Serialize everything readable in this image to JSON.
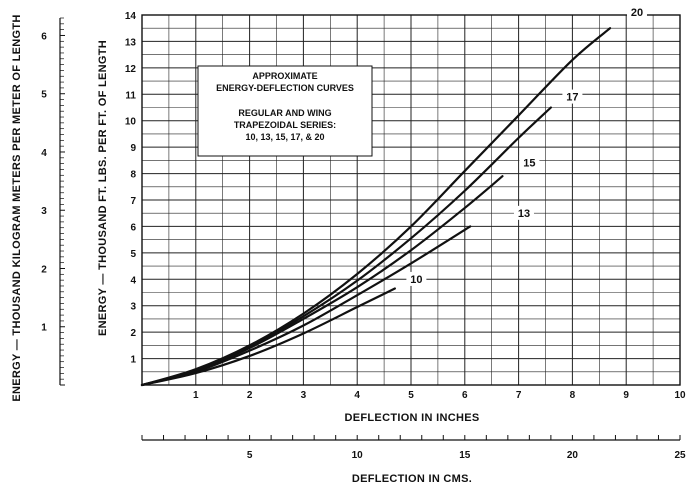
{
  "chart_data": {
    "type": "line",
    "x_unit_primary": "inches",
    "x_unit_secondary": "cm",
    "y_unit_primary": "thousand ft-lbs per ft of length",
    "y_unit_secondary": "thousand kilogram meters per meter of length",
    "xlabel": "DEFLECTION IN INCHES",
    "xlabel_secondary": "DEFLECTION IN CMS.",
    "ylabel": "ENERGY — THOUSAND FT. LBS. PER FT. OF LENGTH",
    "ylabel_secondary": "ENERGY — THOUSAND KILOGRAM METERS PER METER OF LENGTH",
    "xlim": [
      0,
      10
    ],
    "ylim": [
      0,
      14
    ],
    "x_ticks": [
      "1",
      "2",
      "3",
      "4",
      "5",
      "6",
      "7",
      "8",
      "9",
      "10"
    ],
    "y_ticks": [
      "1",
      "2",
      "3",
      "4",
      "5",
      "6",
      "7",
      "8",
      "9",
      "10",
      "11",
      "12",
      "13",
      "14"
    ],
    "x2_ticks": [
      {
        "value": 5,
        "label": "5"
      },
      {
        "value": 10,
        "label": "10"
      },
      {
        "value": 15,
        "label": "15"
      },
      {
        "value": 20,
        "label": "20"
      },
      {
        "value": 25,
        "label": "25"
      }
    ],
    "x2_lim": [
      0,
      25
    ],
    "y2_ticks": [
      {
        "value": 1,
        "label": "1"
      },
      {
        "value": 2,
        "label": "2"
      },
      {
        "value": 3,
        "label": "3"
      },
      {
        "value": 4,
        "label": "4"
      },
      {
        "value": 5,
        "label": "5"
      },
      {
        "value": 6,
        "label": "6"
      }
    ],
    "y2_lim": [
      0,
      6.3
    ],
    "grid": true,
    "legend_box": {
      "placement": "upper-left",
      "lines": [
        "APPROXIMATE",
        "ENERGY-DEFLECTION CURVES",
        "",
        "REGULAR AND WING",
        "TRAPEZOIDAL SERIES:",
        "10, 13, 15, 17, & 20"
      ]
    },
    "series": [
      {
        "name": "10",
        "x": [
          0,
          1,
          2,
          3,
          4,
          4.7
        ],
        "y": [
          0,
          0.45,
          1.1,
          1.95,
          2.95,
          3.65
        ]
      },
      {
        "name": "13",
        "x": [
          0,
          1,
          2,
          3,
          4,
          5,
          6.1
        ],
        "y": [
          0,
          0.5,
          1.3,
          2.25,
          3.4,
          4.6,
          6.0
        ]
      },
      {
        "name": "15",
        "x": [
          0,
          1,
          2,
          3,
          4,
          5,
          6,
          6.7
        ],
        "y": [
          0,
          0.55,
          1.4,
          2.5,
          3.7,
          5.1,
          6.7,
          7.9
        ]
      },
      {
        "name": "17",
        "x": [
          0,
          1,
          2,
          3,
          4,
          5,
          6,
          7,
          7.6
        ],
        "y": [
          0,
          0.55,
          1.45,
          2.6,
          3.95,
          5.55,
          7.35,
          9.35,
          10.5
        ]
      },
      {
        "name": "20",
        "x": [
          0,
          1,
          2,
          3,
          4,
          5,
          6,
          7,
          8,
          8.7
        ],
        "y": [
          0,
          0.6,
          1.5,
          2.7,
          4.2,
          6.0,
          8.1,
          10.2,
          12.3,
          13.5
        ]
      }
    ],
    "series_label_at": {
      "10": [
        5.1,
        3.9
      ],
      "13": [
        7.1,
        6.4
      ],
      "15": [
        7.2,
        8.3
      ],
      "17": [
        8.0,
        10.8
      ],
      "20": [
        9.2,
        14.0
      ]
    }
  }
}
